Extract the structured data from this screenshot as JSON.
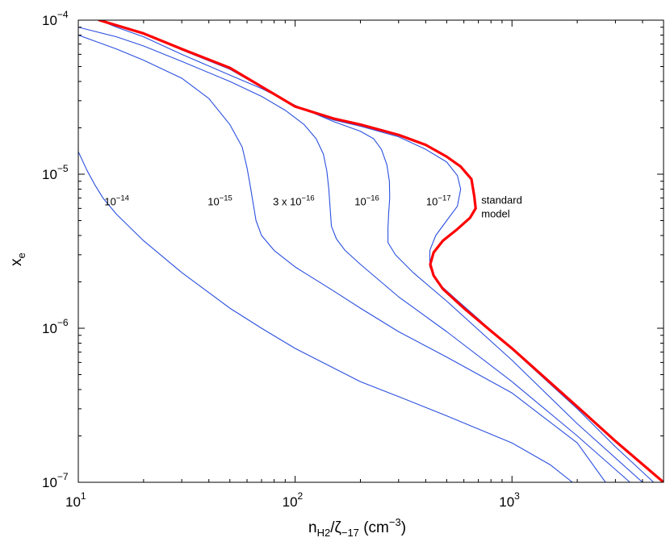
{
  "chart_data": {
    "type": "line",
    "title": "",
    "xlabel": {
      "base": "n",
      "sub": "H2",
      "mid": "/ζ",
      "sub2": "−17",
      "units": " (cm",
      "units_exp": "−3",
      "units_close": ")"
    },
    "ylabel": {
      "base": "x",
      "sub": "e"
    },
    "xscale": "log",
    "yscale": "log",
    "xlim": [
      10,
      5000
    ],
    "ylim": [
      1e-07,
      0.0001
    ],
    "grid": false,
    "x_ticks": [
      {
        "value": 10,
        "base": "10",
        "exp": "1"
      },
      {
        "value": 100,
        "base": "10",
        "exp": "2"
      },
      {
        "value": 1000,
        "base": "10",
        "exp": "3"
      }
    ],
    "y_ticks": [
      {
        "value": 1e-07,
        "base": "10",
        "exp": "−7"
      },
      {
        "value": 1e-06,
        "base": "10",
        "exp": "−6"
      },
      {
        "value": 1e-05,
        "base": "10",
        "exp": "−5"
      },
      {
        "value": 0.0001,
        "base": "10",
        "exp": "−4"
      }
    ],
    "series": [
      {
        "name": "1e-14",
        "label_base": "10",
        "label_exp": "−14",
        "label_prefix": "",
        "color": "#2a4fe0",
        "width": 1.1,
        "label_at": {
          "x": 13.2,
          "y": 6.3e-06
        },
        "points": [
          [
            10,
            1.4e-05
          ],
          [
            11,
            1.05e-05
          ],
          [
            12,
            8.4e-06
          ],
          [
            13,
            7e-06
          ],
          [
            15,
            5.5e-06
          ],
          [
            20,
            3.7e-06
          ],
          [
            30,
            2.3e-06
          ],
          [
            50,
            1.35e-06
          ],
          [
            70,
            1e-06
          ],
          [
            100,
            7.4e-07
          ],
          [
            200,
            4.5e-07
          ],
          [
            300,
            3.6e-07
          ],
          [
            500,
            2.7e-07
          ],
          [
            1000,
            1.8e-07
          ],
          [
            1500,
            1.3e-07
          ],
          [
            1900,
            1e-07
          ]
        ]
      },
      {
        "name": "1e-15",
        "label_base": "10",
        "label_exp": "−15",
        "label_prefix": "",
        "color": "#2a4fe0",
        "width": 1.1,
        "label_at": {
          "x": 39.5,
          "y": 6.3e-06
        },
        "points": [
          [
            10,
            8e-05
          ],
          [
            15,
            6.5e-05
          ],
          [
            20,
            5.5e-05
          ],
          [
            30,
            4.2e-05
          ],
          [
            40,
            3.1e-05
          ],
          [
            50,
            2.1e-05
          ],
          [
            57,
            1.5e-05
          ],
          [
            60,
            1.1e-05
          ],
          [
            62,
            8.5e-06
          ],
          [
            64,
            6.5e-06
          ],
          [
            66,
            5e-06
          ],
          [
            70,
            4e-06
          ],
          [
            80,
            3.2e-06
          ],
          [
            100,
            2.5e-06
          ],
          [
            150,
            1.75e-06
          ],
          [
            200,
            1.35e-06
          ],
          [
            300,
            9.5e-07
          ],
          [
            500,
            6.5e-07
          ],
          [
            1000,
            3.8e-07
          ],
          [
            2000,
            1.8e-07
          ],
          [
            2700,
            1e-07
          ]
        ]
      },
      {
        "name": "3e-16",
        "label_base": "10",
        "label_exp": "−16",
        "label_prefix": "3 x ",
        "color": "#2a4fe0",
        "width": 1.1,
        "label_at": {
          "x": 79,
          "y": 6.3e-06
        },
        "points": [
          [
            10,
            9e-05
          ],
          [
            15,
            7.8e-05
          ],
          [
            20,
            6.8e-05
          ],
          [
            30,
            5.4e-05
          ],
          [
            50,
            4e-05
          ],
          [
            70,
            3.2e-05
          ],
          [
            90,
            2.6e-05
          ],
          [
            110,
            2.1e-05
          ],
          [
            125,
            1.7e-05
          ],
          [
            135,
            1.35e-05
          ],
          [
            140,
            1.05e-05
          ],
          [
            143,
            8e-06
          ],
          [
            145,
            6e-06
          ],
          [
            147,
            4.6e-06
          ],
          [
            155,
            3.8e-06
          ],
          [
            170,
            3.2e-06
          ],
          [
            200,
            2.6e-06
          ],
          [
            300,
            1.6e-06
          ],
          [
            500,
            9.5e-07
          ],
          [
            1000,
            4.5e-07
          ],
          [
            2000,
            2e-07
          ],
          [
            3500,
            1e-07
          ]
        ]
      },
      {
        "name": "1e-16",
        "label_base": "10",
        "label_exp": "−16",
        "label_prefix": "",
        "color": "#2a4fe0",
        "width": 1.1,
        "label_at": {
          "x": 188,
          "y": 6.3e-06
        },
        "points": [
          [
            12.5,
            0.0001
          ],
          [
            15,
            9e-05
          ],
          [
            20,
            7.8e-05
          ],
          [
            30,
            6e-05
          ],
          [
            50,
            4.4e-05
          ],
          [
            70,
            3.6e-05
          ],
          [
            100,
            2.8e-05
          ],
          [
            150,
            2.2e-05
          ],
          [
            200,
            1.9e-05
          ],
          [
            230,
            1.7e-05
          ],
          [
            250,
            1.45e-05
          ],
          [
            265,
            1.15e-05
          ],
          [
            272,
            9e-06
          ],
          [
            273,
            7e-06
          ],
          [
            270,
            5.6e-06
          ],
          [
            268,
            4.5e-06
          ],
          [
            268,
            3.6e-06
          ],
          [
            290,
            3e-06
          ],
          [
            350,
            2.3e-06
          ],
          [
            500,
            1.5e-06
          ],
          [
            1000,
            6.2e-07
          ],
          [
            2000,
            2.4e-07
          ],
          [
            4000,
            1e-07
          ]
        ]
      },
      {
        "name": "1e-17",
        "label_base": "10",
        "label_exp": "−17",
        "label_prefix": "",
        "color": "#2a4fe0",
        "width": 1.1,
        "label_at": {
          "x": 402,
          "y": 6.3e-06
        },
        "points": [
          [
            12.5,
            0.0001
          ],
          [
            20,
            8.2e-05
          ],
          [
            30,
            6.4e-05
          ],
          [
            50,
            4.8e-05
          ],
          [
            100,
            2.75e-05
          ],
          [
            150,
            2.25e-05
          ],
          [
            200,
            2.05e-05
          ],
          [
            300,
            1.75e-05
          ],
          [
            400,
            1.45e-05
          ],
          [
            500,
            1.2e-05
          ],
          [
            560,
            9.8e-06
          ],
          [
            580,
            8e-06
          ],
          [
            560,
            6.2e-06
          ],
          [
            500,
            5e-06
          ],
          [
            445,
            4e-06
          ],
          [
            418,
            3.2e-06
          ],
          [
            418,
            2.5e-06
          ],
          [
            450,
            2e-06
          ],
          [
            550,
            1.55e-06
          ],
          [
            700,
            1.15e-06
          ],
          [
            1000,
            7.3e-07
          ],
          [
            2000,
            3e-07
          ],
          [
            3000,
            1.7e-07
          ],
          [
            4500,
            1e-07
          ]
        ]
      },
      {
        "name": "standard model",
        "label_lines": [
          "standard",
          "model"
        ],
        "color": "#ff0000",
        "width": 3.2,
        "label_at": {
          "x": 722,
          "y": 6.3e-06
        },
        "points": [
          [
            12.5,
            0.0001
          ],
          [
            20,
            8.2e-05
          ],
          [
            30,
            6.5e-05
          ],
          [
            50,
            4.9e-05
          ],
          [
            100,
            2.75e-05
          ],
          [
            150,
            2.3e-05
          ],
          [
            200,
            2.1e-05
          ],
          [
            300,
            1.8e-05
          ],
          [
            400,
            1.55e-05
          ],
          [
            500,
            1.3e-05
          ],
          [
            580,
            1.12e-05
          ],
          [
            650,
            9.3e-06
          ],
          [
            670,
            7.2e-06
          ],
          [
            680,
            6e-06
          ],
          [
            640,
            5.2e-06
          ],
          [
            560,
            4.4e-06
          ],
          [
            480,
            3.7e-06
          ],
          [
            435,
            3.1e-06
          ],
          [
            420,
            2.6e-06
          ],
          [
            435,
            2.2e-06
          ],
          [
            480,
            1.8e-06
          ],
          [
            600,
            1.35e-06
          ],
          [
            800,
            9.6e-07
          ],
          [
            1000,
            7.4e-07
          ],
          [
            2000,
            3.1e-07
          ],
          [
            3000,
            1.85e-07
          ],
          [
            5000,
            1e-07
          ]
        ]
      }
    ]
  }
}
